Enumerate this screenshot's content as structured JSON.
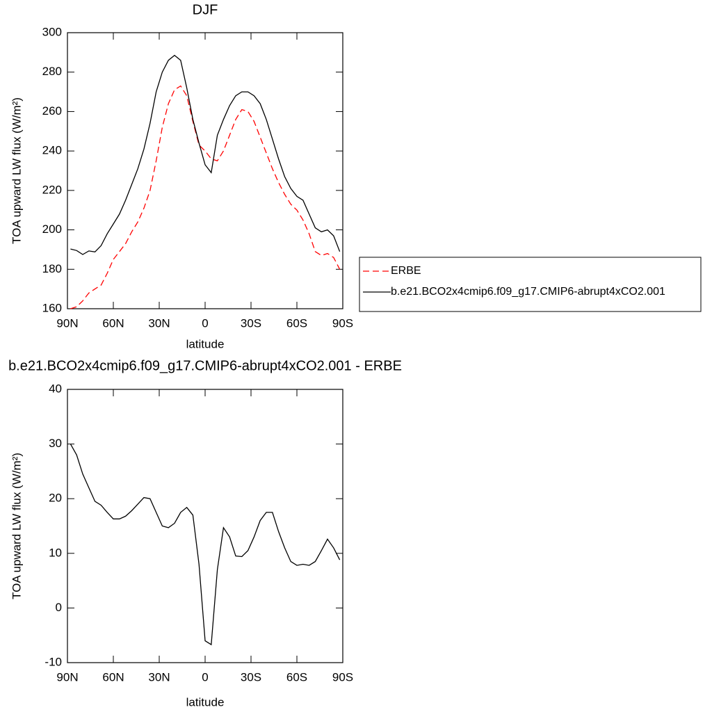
{
  "chart_data": [
    {
      "type": "line",
      "title": "DJF",
      "xlabel": "latitude",
      "ylabel": "TOA upward LW flux (W/m²)",
      "x": [
        88,
        84,
        80,
        76,
        72,
        68,
        64,
        60,
        56,
        52,
        48,
        44,
        40,
        36,
        32,
        28,
        24,
        20,
        16,
        12,
        8,
        4,
        0,
        -4,
        -8,
        -12,
        -16,
        -20,
        -24,
        -28,
        -32,
        -36,
        -40,
        -44,
        -48,
        -52,
        -56,
        -60,
        -64,
        -68,
        -72,
        -76,
        -80,
        -84,
        -88
      ],
      "series": [
        {
          "name": "ERBE",
          "color": "#ff0000",
          "line_style": "dashed",
          "values": [
            160,
            161,
            164,
            168,
            170,
            172,
            178,
            185,
            189,
            193,
            199,
            204,
            211,
            220,
            235,
            252,
            264,
            271,
            273,
            268,
            255,
            243,
            240,
            236,
            235,
            240,
            248,
            256,
            261,
            260,
            255,
            247,
            239,
            231,
            224,
            218,
            213,
            210,
            205,
            198,
            189,
            187,
            188,
            186,
            180
          ]
        },
        {
          "name": "b.e21.BCO2x4cmip6.f09_g17.CMIP6-abrupt4xCO2.001",
          "color": "#000000",
          "line_style": "solid",
          "values": [
            190.3,
            189.5,
            187.5,
            189.3,
            188.8,
            192,
            198,
            203,
            208,
            215,
            223,
            231,
            241,
            254,
            270,
            280,
            286,
            288.5,
            286,
            272,
            256,
            244,
            233,
            229,
            248,
            256,
            263,
            268,
            270,
            270,
            268,
            264,
            256,
            246,
            236,
            227,
            221,
            217,
            215,
            208,
            201,
            199,
            200,
            197,
            189
          ]
        }
      ],
      "xlim": [
        90,
        -90
      ],
      "ylim": [
        160,
        300
      ],
      "xticks": [
        {
          "value": 90,
          "label": "90N"
        },
        {
          "value": 60,
          "label": "60N"
        },
        {
          "value": 30,
          "label": "30N"
        },
        0,
        {
          "value": -30,
          "label": "30S"
        },
        {
          "value": -60,
          "label": "60S"
        },
        {
          "value": -90,
          "label": "90S"
        }
      ],
      "yticks": [
        160,
        180,
        200,
        220,
        240,
        260,
        280,
        300
      ],
      "legend": "right"
    },
    {
      "type": "line",
      "title": "b.e21.BCO2x4cmip6.f09_g17.CMIP6-abrupt4xCO2.001 - ERBE",
      "xlabel": "latitude",
      "ylabel": "TOA upward LW flux (W/m²)",
      "x": [
        88,
        84,
        80,
        76,
        72,
        68,
        64,
        60,
        56,
        52,
        48,
        44,
        40,
        36,
        32,
        28,
        24,
        20,
        16,
        12,
        8,
        4,
        0,
        -4,
        -8,
        -12,
        -16,
        -20,
        -24,
        -28,
        -32,
        -36,
        -40,
        -44,
        -48,
        -52,
        -56,
        -60,
        -64,
        -68,
        -72,
        -76,
        -80,
        -84,
        -88
      ],
      "values": [
        30,
        28,
        24.5,
        22,
        19.5,
        18.8,
        17.5,
        16.3,
        16.3,
        16.8,
        17.8,
        19,
        20.2,
        20,
        17.5,
        15,
        14.7,
        15.5,
        17.5,
        18.4,
        17,
        8,
        -6,
        -6.7,
        7,
        14.7,
        13,
        9.5,
        9.4,
        10.5,
        13,
        16,
        17.5,
        17.5,
        14,
        11,
        8.5,
        7.8,
        8,
        7.8,
        8.5,
        10.5,
        12.6,
        11,
        8.8
      ],
      "color": "#000000",
      "line_style": "solid",
      "xlim": [
        90,
        -90
      ],
      "ylim": [
        -10,
        40
      ],
      "xticks": [
        {
          "value": 90,
          "label": "90N"
        },
        {
          "value": 60,
          "label": "60N"
        },
        {
          "value": 30,
          "label": "30N"
        },
        0,
        {
          "value": -30,
          "label": "30S"
        },
        {
          "value": -60,
          "label": "60S"
        },
        {
          "value": -90,
          "label": "90S"
        }
      ],
      "yticks": [
        -10,
        0,
        10,
        20,
        30,
        40
      ]
    }
  ]
}
